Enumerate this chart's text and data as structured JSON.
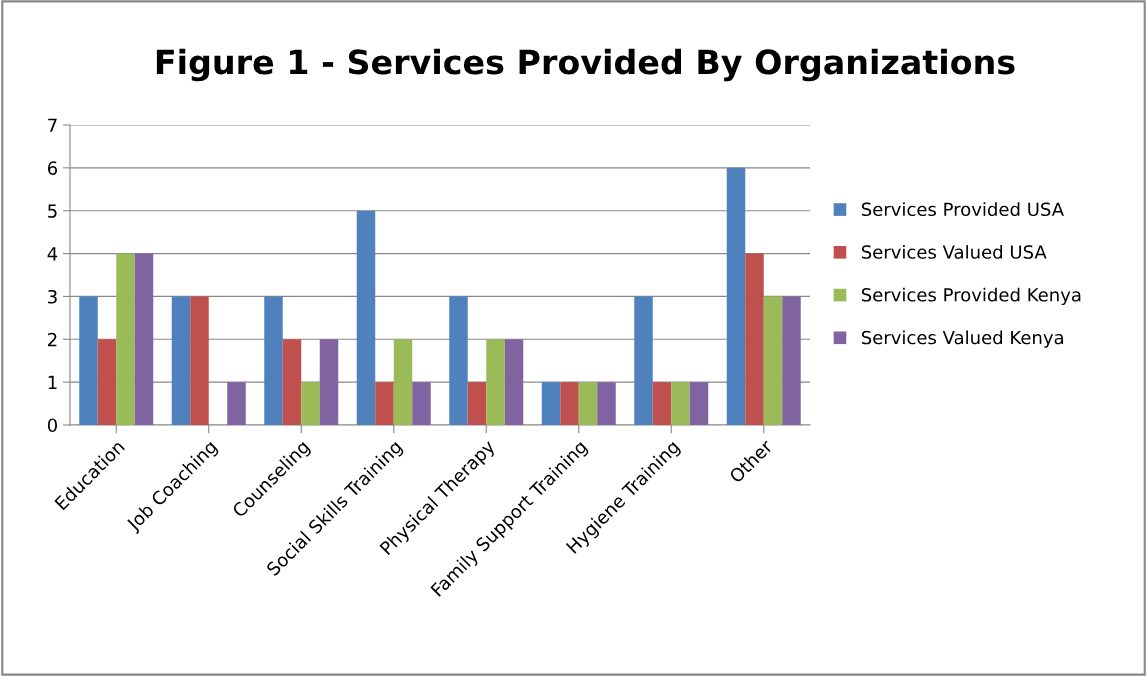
{
  "chart_data": {
    "type": "bar",
    "title": "Figure 1 - Services Provided By Organizations",
    "categories": [
      "Education",
      "Job Coaching",
      "Counseling",
      "Social Skills Training",
      "Physical Therapy",
      "Family Support Training",
      "Hygiene Training",
      "Other"
    ],
    "series": [
      {
        "name": "Services Provided USA",
        "color": "#4f81bd",
        "values": [
          3,
          3,
          3,
          5,
          3,
          1,
          3,
          6
        ]
      },
      {
        "name": "Services Valued USA",
        "color": "#c0504d",
        "values": [
          2,
          3,
          2,
          1,
          1,
          1,
          1,
          4
        ]
      },
      {
        "name": "Services Provided Kenya",
        "color": "#9bbb59",
        "values": [
          4,
          0,
          1,
          2,
          2,
          1,
          1,
          3
        ]
      },
      {
        "name": "Services Valued Kenya",
        "color": "#8064a2",
        "values": [
          4,
          1,
          2,
          1,
          2,
          1,
          1,
          3
        ]
      }
    ],
    "ylim": [
      0,
      7
    ],
    "yticks": [
      0,
      1,
      2,
      3,
      4,
      5,
      6,
      7
    ],
    "grid": "y",
    "legend": "right"
  }
}
